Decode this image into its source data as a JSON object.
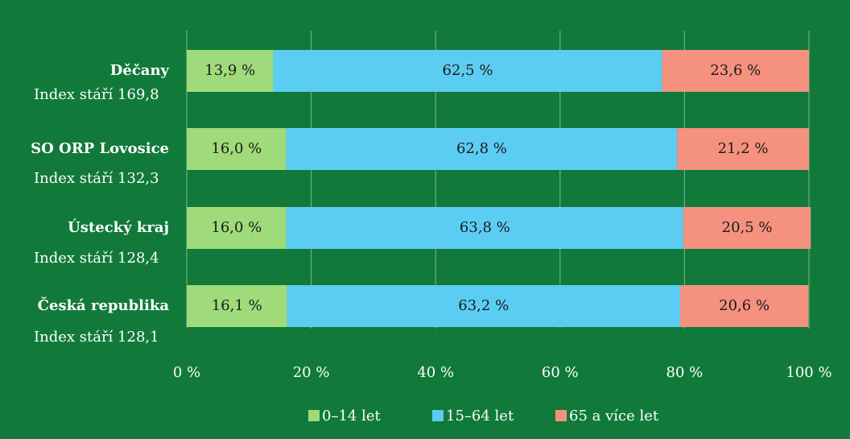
{
  "chart_data": {
    "type": "stacked_bar_horizontal",
    "categories": [
      "Děčany",
      "SO ORP Lovosice",
      "Ústecký kraj",
      "Česká republika"
    ],
    "category_notes": [
      "Index stáří 169,8",
      "Index stáří 132,3",
      "Index stáří 128,4",
      "Index stáří 128,1"
    ],
    "series": [
      {
        "name": "0–14 let",
        "color": "#9fdb7a",
        "values": [
          13.9,
          16.0,
          16.0,
          16.1
        ],
        "value_labels": [
          "13,9 %",
          "16,0 %",
          "16,0 %",
          "16,1 %"
        ]
      },
      {
        "name": "15–64 let",
        "color": "#5ccdf2",
        "values": [
          62.5,
          62.8,
          63.8,
          63.2
        ],
        "value_labels": [
          "62,5 %",
          "62,8 %",
          "63,8 %",
          "63,2 %"
        ]
      },
      {
        "name": "65 a více let",
        "color": "#f5917f",
        "values": [
          23.6,
          21.2,
          20.5,
          20.6
        ],
        "value_labels": [
          "23,6 %",
          "21,2 %",
          "20,5 %",
          "20,6 %"
        ]
      }
    ],
    "xlim": [
      0,
      100
    ],
    "xticks": [
      {
        "value": 0,
        "label": "0 %"
      },
      {
        "value": 20,
        "label": "20 %"
      },
      {
        "value": 40,
        "label": "40 %"
      },
      {
        "value": 60,
        "label": "60 %"
      },
      {
        "value": 80,
        "label": "80 %"
      },
      {
        "value": 100,
        "label": "100 %"
      }
    ],
    "grid": true,
    "legend": "bottom"
  }
}
